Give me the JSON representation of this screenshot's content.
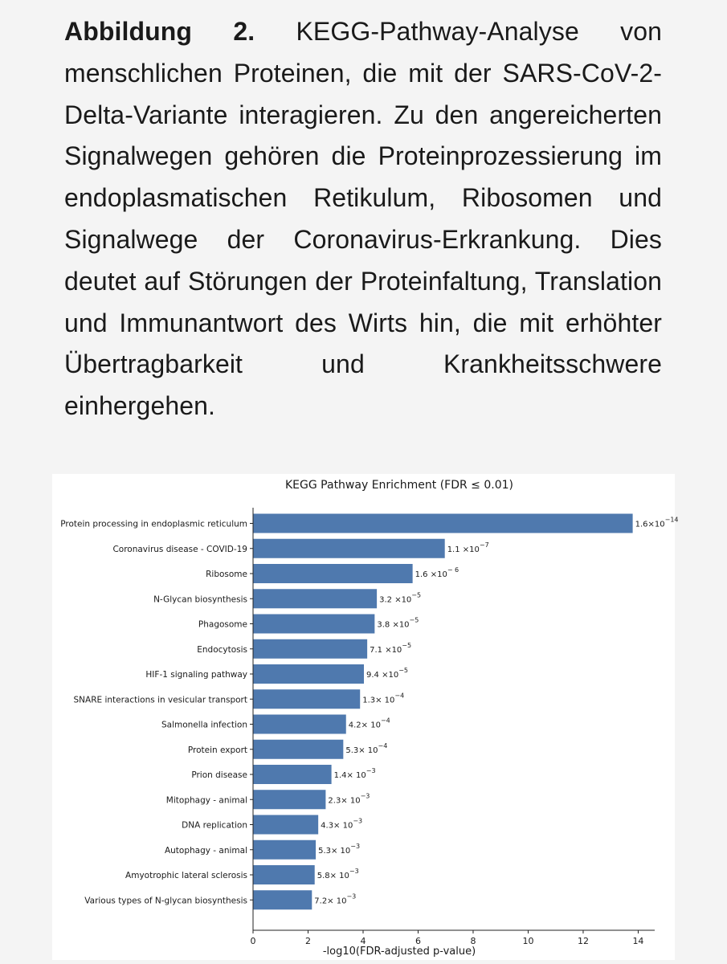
{
  "caption": {
    "label": "Abbildung 2.",
    "text": "KEGG-Pathway-Analyse von menschlichen Proteinen, die mit der SARS-CoV-2-Delta-Variante interagieren. Zu den angereicherten Signalwegen gehören die Proteinprozessierung im endoplasmatischen Retikulum, Ribosomen und Signalwege der Coronavirus-Erkrankung. Dies deutet auf Störungen der Proteinfaltung, Translation und Immunantwort des Wirts hin, die mit erhöhter Übertragbarkeit und Krankheitsschwere einhergehen."
  },
  "colors": {
    "bar": "#4f79ae",
    "background": "#f4f4f4",
    "figure_bg": "#ffffff"
  },
  "chart_data": {
    "type": "bar",
    "orientation": "horizontal",
    "title": "KEGG Pathway Enrichment (FDR ≤ 0.01)",
    "xlabel": "-log10(FDR-adjusted p-value)",
    "ylabel": "",
    "xlim": [
      0,
      14.6
    ],
    "xticks": [
      0,
      2,
      4,
      6,
      8,
      10,
      12,
      14
    ],
    "grid": false,
    "categories": [
      "Protein processing in endoplasmic reticulum",
      "Coronavirus disease - COVID-19",
      "Ribosome",
      "N-Glycan biosynthesis",
      "Phagosome",
      "Endocytosis",
      "HIF-1 signaling pathway",
      "SNARE interactions in vesicular transport",
      "Salmonella infection",
      "Protein export",
      "Prion disease",
      "Mitophagy - animal",
      "DNA replication",
      "Autophagy - animal",
      "Amyotrophic lateral sclerosis",
      "Various types of N-glycan biosynthesis"
    ],
    "values": [
      13.8,
      6.97,
      5.8,
      4.5,
      4.42,
      4.15,
      4.03,
      3.89,
      3.38,
      3.28,
      2.85,
      2.64,
      2.37,
      2.28,
      2.24,
      2.14
    ],
    "labels": [
      {
        "m": "1.6×10",
        "e": "−14"
      },
      {
        "m": "1.1 ×10",
        "e": "−7"
      },
      {
        "m": "1.6 ×10",
        "e": "− 6"
      },
      {
        "m": "3.2 ×10",
        "e": "−5"
      },
      {
        "m": "3.8 ×10",
        "e": "−5"
      },
      {
        "m": "7.1 ×10",
        "e": "−5"
      },
      {
        "m": "9.4 ×10",
        "e": "−5"
      },
      {
        "m": "1.3× 10",
        "e": "−4"
      },
      {
        "m": "4.2× 10",
        "e": "−4"
      },
      {
        "m": "5.3× 10",
        "e": "−4"
      },
      {
        "m": "1.4× 10",
        "e": "−3"
      },
      {
        "m": "2.3× 10",
        "e": "−3"
      },
      {
        "m": "4.3× 10",
        "e": "−3"
      },
      {
        "m": "5.3× 10",
        "e": "−3"
      },
      {
        "m": "5.8× 10",
        "e": "−3"
      },
      {
        "m": "7.2× 10",
        "e": "−3"
      }
    ]
  }
}
